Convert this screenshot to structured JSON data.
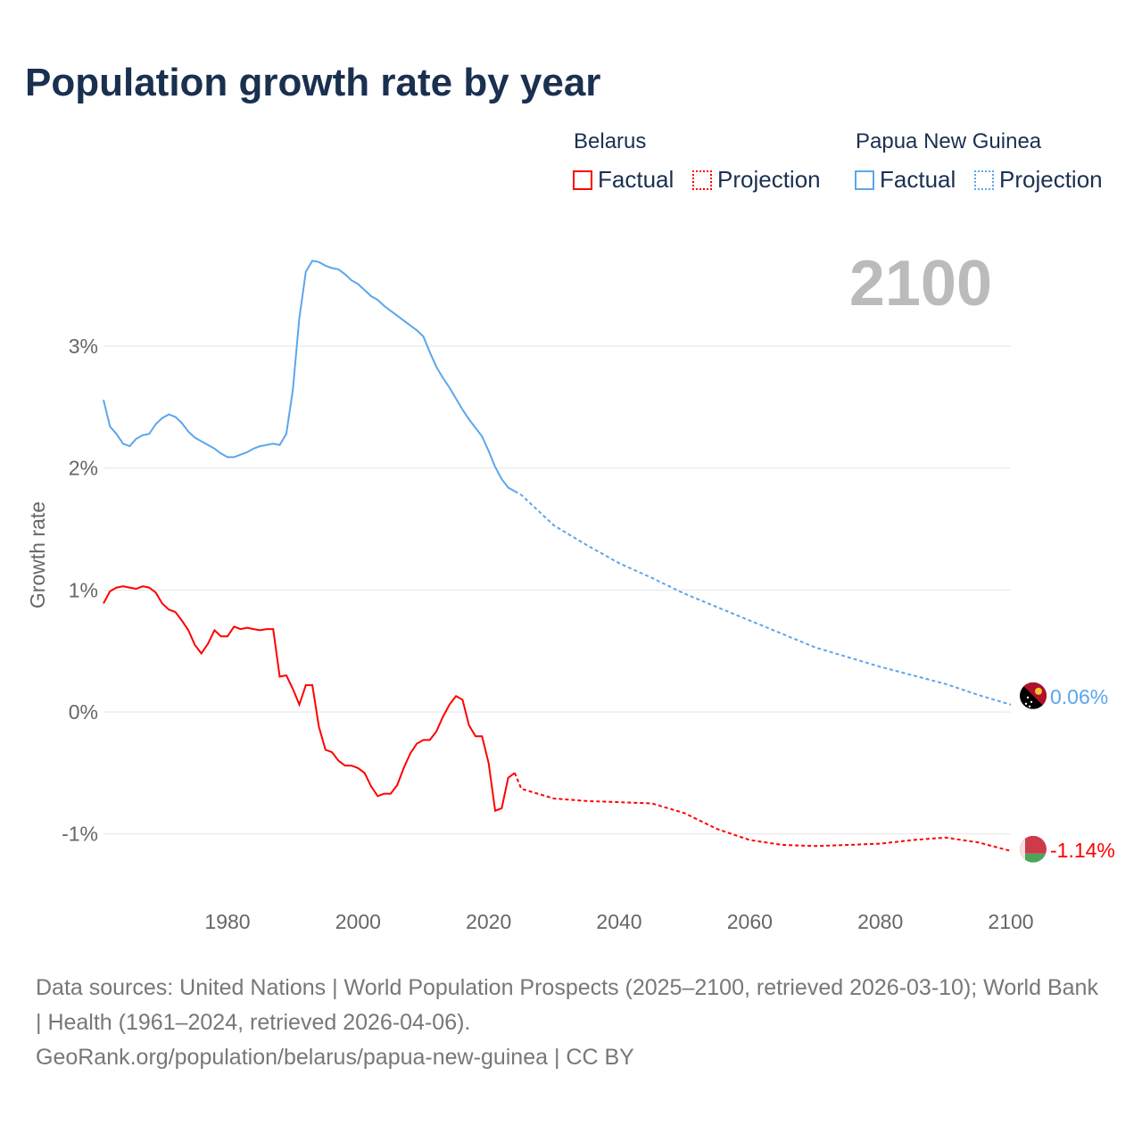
{
  "title": "Population growth rate by year",
  "legend": {
    "groups": [
      {
        "country": "Belarus",
        "factual": "Factual",
        "projection": "Projection"
      },
      {
        "country": "Papua New Guinea",
        "factual": "Factual",
        "projection": "Projection"
      }
    ]
  },
  "colors": {
    "belarus": "#ff0000",
    "png": "#5ca6ec",
    "grid": "#e6e6e6",
    "tick": "#666666",
    "year": "#bbbbbb"
  },
  "year_label": "2100",
  "footer": {
    "sources": "Data sources: United Nations | World Population Prospects (2025–2100, retrieved 2026-03-10); World Bank | Health (1961–2024, retrieved 2026-04-06).",
    "url": "GeoRank.org/population/belarus/papua-new-guinea | CC BY"
  },
  "chart_data": {
    "type": "line",
    "title": "Population growth rate by year",
    "xlabel": "",
    "ylabel": "Growth rate",
    "xlim": [
      1961,
      2100
    ],
    "ylim": [
      -1.5,
      3.8
    ],
    "x_ticks": [
      1980,
      2000,
      2020,
      2040,
      2060,
      2080,
      2100
    ],
    "x_tick_labels": [
      "1980",
      "2000",
      "2020",
      "2040",
      "2060",
      "2080",
      "2100"
    ],
    "y_ticks": [
      -1,
      0,
      1,
      2,
      3
    ],
    "y_tick_labels": [
      "-1%",
      "0%",
      "1%",
      "2%",
      "3%"
    ],
    "grid": true,
    "legend_position": "top-right",
    "series": [
      {
        "name": "Papua New Guinea",
        "color": "#5ca6ec",
        "end_label": "0.06%",
        "factual": {
          "x_start": 1961,
          "values": [
            2.56,
            2.34,
            2.28,
            2.2,
            2.18,
            2.24,
            2.27,
            2.28,
            2.36,
            2.41,
            2.44,
            2.42,
            2.37,
            2.3,
            2.25,
            2.22,
            2.19,
            2.16,
            2.12,
            2.09,
            2.09,
            2.11,
            2.13,
            2.16,
            2.18,
            2.19,
            2.2,
            2.19,
            2.28,
            2.64,
            3.23,
            3.61,
            3.7,
            3.69,
            3.66,
            3.64,
            3.63,
            3.59,
            3.54,
            3.51,
            3.46,
            3.41,
            3.38,
            3.33,
            3.29,
            3.25,
            3.21,
            3.17,
            3.13,
            3.08,
            2.95,
            2.83,
            2.74,
            2.66,
            2.57,
            2.48,
            2.4,
            2.33,
            2.26,
            2.14,
            2.01,
            1.91,
            1.84,
            1.81
          ]
        },
        "projection": {
          "x": [
            2025,
            2030,
            2035,
            2040,
            2045,
            2050,
            2055,
            2060,
            2065,
            2070,
            2075,
            2080,
            2085,
            2090,
            2095,
            2100
          ],
          "values": [
            1.78,
            1.53,
            1.37,
            1.22,
            1.1,
            0.97,
            0.86,
            0.75,
            0.64,
            0.53,
            0.45,
            0.37,
            0.3,
            0.23,
            0.14,
            0.06
          ]
        }
      },
      {
        "name": "Belarus",
        "color": "#ff0000",
        "end_label": "-1.14%",
        "factual": {
          "x_start": 1961,
          "values": [
            0.89,
            0.99,
            1.02,
            1.03,
            1.02,
            1.01,
            1.03,
            1.02,
            0.98,
            0.89,
            0.84,
            0.82,
            0.75,
            0.67,
            0.55,
            0.48,
            0.56,
            0.67,
            0.62,
            0.62,
            0.7,
            0.68,
            0.69,
            0.68,
            0.67,
            0.68,
            0.68,
            0.29,
            0.3,
            0.19,
            0.06,
            0.22,
            0.22,
            -0.12,
            -0.31,
            -0.33,
            -0.4,
            -0.44,
            -0.44,
            -0.46,
            -0.5,
            -0.61,
            -0.69,
            -0.67,
            -0.67,
            -0.6,
            -0.46,
            -0.34,
            -0.26,
            -0.23,
            -0.23,
            -0.16,
            -0.04,
            0.06,
            0.13,
            0.1,
            -0.11,
            -0.2,
            -0.2,
            -0.42,
            -0.81,
            -0.79,
            -0.54,
            -0.5
          ]
        },
        "projection": {
          "x": [
            2025,
            2030,
            2035,
            2040,
            2045,
            2050,
            2055,
            2060,
            2065,
            2070,
            2075,
            2080,
            2085,
            2090,
            2095,
            2100
          ],
          "values": [
            -0.63,
            -0.71,
            -0.73,
            -0.74,
            -0.75,
            -0.83,
            -0.96,
            -1.05,
            -1.09,
            -1.1,
            -1.09,
            -1.08,
            -1.05,
            -1.03,
            -1.07,
            -1.14
          ]
        }
      }
    ]
  }
}
